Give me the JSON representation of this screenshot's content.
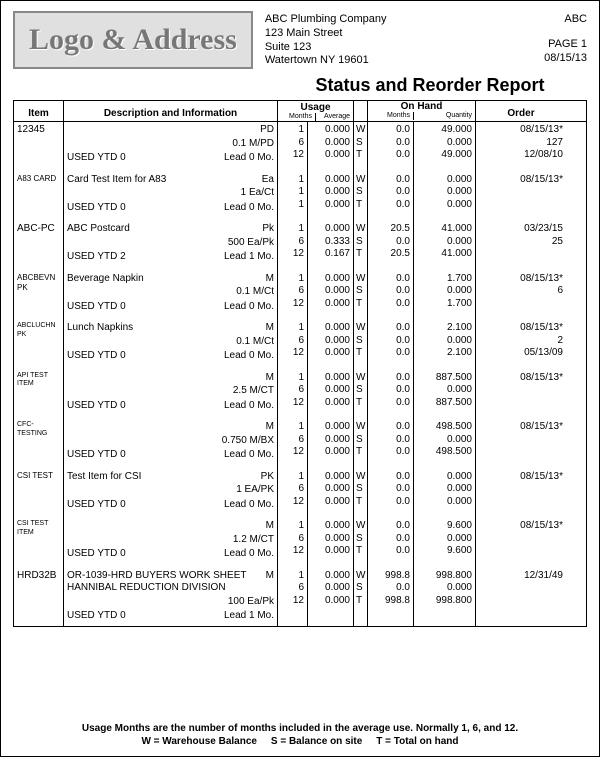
{
  "header": {
    "logo_text": "Logo & Address",
    "company_name": "ABC Plumbing Company",
    "street": "123 Main Street",
    "suite": "Suite 123",
    "city_line": "Watertown  NY  19601",
    "code": "ABC",
    "page": "PAGE 1",
    "date": "08/15/13"
  },
  "title": "Status and Reorder Report",
  "columns": {
    "item": "Item",
    "desc": "Description and Information",
    "usage": "Usage",
    "usage_months": "Months",
    "usage_avg": "Average",
    "wst": "",
    "onhand": "On Hand",
    "onhand_months": "Months",
    "onhand_qty": "Quantity",
    "order": "Order"
  },
  "items": [
    {
      "code": "12345",
      "desc": "",
      "right1": "PD",
      "right2": "0.1 M/PD",
      "used": "USED YTD 0",
      "lead": "Lead 0 Mo.",
      "um": [
        "1",
        "6",
        "12"
      ],
      "avg": [
        "0.000",
        "0.000",
        "0.000"
      ],
      "wst": [
        "W",
        "S",
        "T"
      ],
      "ohm": [
        "0.0",
        "0.0",
        "0.0"
      ],
      "ohq": [
        "49.000",
        "0.000",
        "49.000"
      ],
      "order": [
        "08/15/13*",
        "127",
        "12/08/10"
      ]
    },
    {
      "code": "A83 CARD",
      "desc": "Card Test Item for A83",
      "right1": "Ea",
      "right2": "1 Ea/Ct",
      "used": "USED YTD 0",
      "lead": "Lead 0 Mo.",
      "um": [
        "1",
        "1",
        "1"
      ],
      "avg": [
        "0.000",
        "0.000",
        "0.000"
      ],
      "wst": [
        "W",
        "S",
        "T"
      ],
      "ohm": [
        "0.0",
        "0.0",
        "0.0"
      ],
      "ohq": [
        "0.000",
        "0.000",
        "0.000"
      ],
      "order": [
        "08/15/13*",
        "",
        ""
      ]
    },
    {
      "code": "ABC-PC",
      "desc": "ABC Postcard",
      "right1": "Pk",
      "right2": "500 Ea/Pk",
      "used": "USED YTD 2",
      "lead": "Lead 1 Mo.",
      "um": [
        "1",
        "6",
        "12"
      ],
      "avg": [
        "0.000",
        "0.333",
        "0.167"
      ],
      "wst": [
        "W",
        "S",
        "T"
      ],
      "ohm": [
        "20.5",
        "0.0",
        "20.5"
      ],
      "ohq": [
        "41.000",
        "0.000",
        "41.000"
      ],
      "order": [
        "03/23/15",
        "25",
        ""
      ]
    },
    {
      "code": "ABCBEVNPK",
      "desc": "Beverage Napkin",
      "right1": "M",
      "right2": "0.1 M/Ct",
      "used": "USED YTD 0",
      "lead": "Lead 0 Mo.",
      "um": [
        "1",
        "6",
        "12"
      ],
      "avg": [
        "0.000",
        "0.000",
        "0.000"
      ],
      "wst": [
        "W",
        "S",
        "T"
      ],
      "ohm": [
        "0.0",
        "0.0",
        "0.0"
      ],
      "ohq": [
        "1.700",
        "0.000",
        "1.700"
      ],
      "order": [
        "08/15/13*",
        "6",
        ""
      ]
    },
    {
      "code": "ABCLUCHNPK",
      "desc": "Lunch Napkins",
      "right1": "M",
      "right2": "0.1 M/Ct",
      "used": "USED YTD 0",
      "lead": "Lead 0 Mo.",
      "um": [
        "1",
        "6",
        "12"
      ],
      "avg": [
        "0.000",
        "0.000",
        "0.000"
      ],
      "wst": [
        "W",
        "S",
        "T"
      ],
      "ohm": [
        "0.0",
        "0.0",
        "0.0"
      ],
      "ohq": [
        "2.100",
        "0.000",
        "2.100"
      ],
      "order": [
        "08/15/13*",
        "2",
        "05/13/09"
      ]
    },
    {
      "code": "API TEST ITEM",
      "desc": "",
      "right1": "M",
      "right2": "2.5 M/CT",
      "used": "USED YTD 0",
      "lead": "Lead 0 Mo.",
      "um": [
        "1",
        "6",
        "12"
      ],
      "avg": [
        "0.000",
        "0.000",
        "0.000"
      ],
      "wst": [
        "W",
        "S",
        "T"
      ],
      "ohm": [
        "0.0",
        "0.0",
        "0.0"
      ],
      "ohq": [
        "887.500",
        "0.000",
        "887.500"
      ],
      "order": [
        "08/15/13*",
        "",
        ""
      ]
    },
    {
      "code": "CFC-TESTING",
      "desc": "",
      "right1": "M",
      "right2": "0.750 M/BX",
      "used": "USED YTD 0",
      "lead": "Lead 0 Mo.",
      "um": [
        "1",
        "6",
        "12"
      ],
      "avg": [
        "0.000",
        "0.000",
        "0.000"
      ],
      "wst": [
        "W",
        "S",
        "T"
      ],
      "ohm": [
        "0.0",
        "0.0",
        "0.0"
      ],
      "ohq": [
        "498.500",
        "0.000",
        "498.500"
      ],
      "order": [
        "08/15/13*",
        "",
        ""
      ]
    },
    {
      "code": "CSI TEST",
      "desc": "Test Item for CSI",
      "right1": "PK",
      "right2": "1 EA/PK",
      "used": "USED YTD 0",
      "lead": "Lead 0 Mo.",
      "um": [
        "1",
        "6",
        "12"
      ],
      "avg": [
        "0.000",
        "0.000",
        "0.000"
      ],
      "wst": [
        "W",
        "S",
        "T"
      ],
      "ohm": [
        "0.0",
        "0.0",
        "0.0"
      ],
      "ohq": [
        "0.000",
        "0.000",
        "0.000"
      ],
      "order": [
        "08/15/13*",
        "",
        ""
      ]
    },
    {
      "code": "CSI TEST ITEM",
      "desc": "",
      "right1": "M",
      "right2": "1.2 M/CT",
      "used": "USED YTD 0",
      "lead": "Lead 0 Mo.",
      "um": [
        "1",
        "6",
        "12"
      ],
      "avg": [
        "0.000",
        "0.000",
        "0.000"
      ],
      "wst": [
        "W",
        "S",
        "T"
      ],
      "ohm": [
        "0.0",
        "0.0",
        "0.0"
      ],
      "ohq": [
        "9.600",
        "0.000",
        "9.600"
      ],
      "order": [
        "08/15/13*",
        "",
        ""
      ]
    },
    {
      "code": "HRD32B",
      "desc": "OR-1039-HRD BUYERS WORK SHEET HANNIBAL REDUCTION DIVISION",
      "right1": "M",
      "right2": "100 Ea/Pk",
      "used": "USED YTD 0",
      "lead": "Lead 1 Mo.",
      "um": [
        "1",
        "6",
        "12"
      ],
      "avg": [
        "0.000",
        "0.000",
        "0.000"
      ],
      "wst": [
        "W",
        "S",
        "T"
      ],
      "ohm": [
        "998.8",
        "0.0",
        "998.8"
      ],
      "ohq": [
        "998.800",
        "0.000",
        "998.800"
      ],
      "order": [
        "12/31/49",
        "",
        ""
      ]
    }
  ],
  "footer": {
    "line1": "Usage Months are the number of months included in the average use.  Normally 1, 6, and 12.",
    "legend_w": "W = Warehouse Balance",
    "legend_s": "S = Balance on site",
    "legend_t": "T = Total on hand"
  }
}
